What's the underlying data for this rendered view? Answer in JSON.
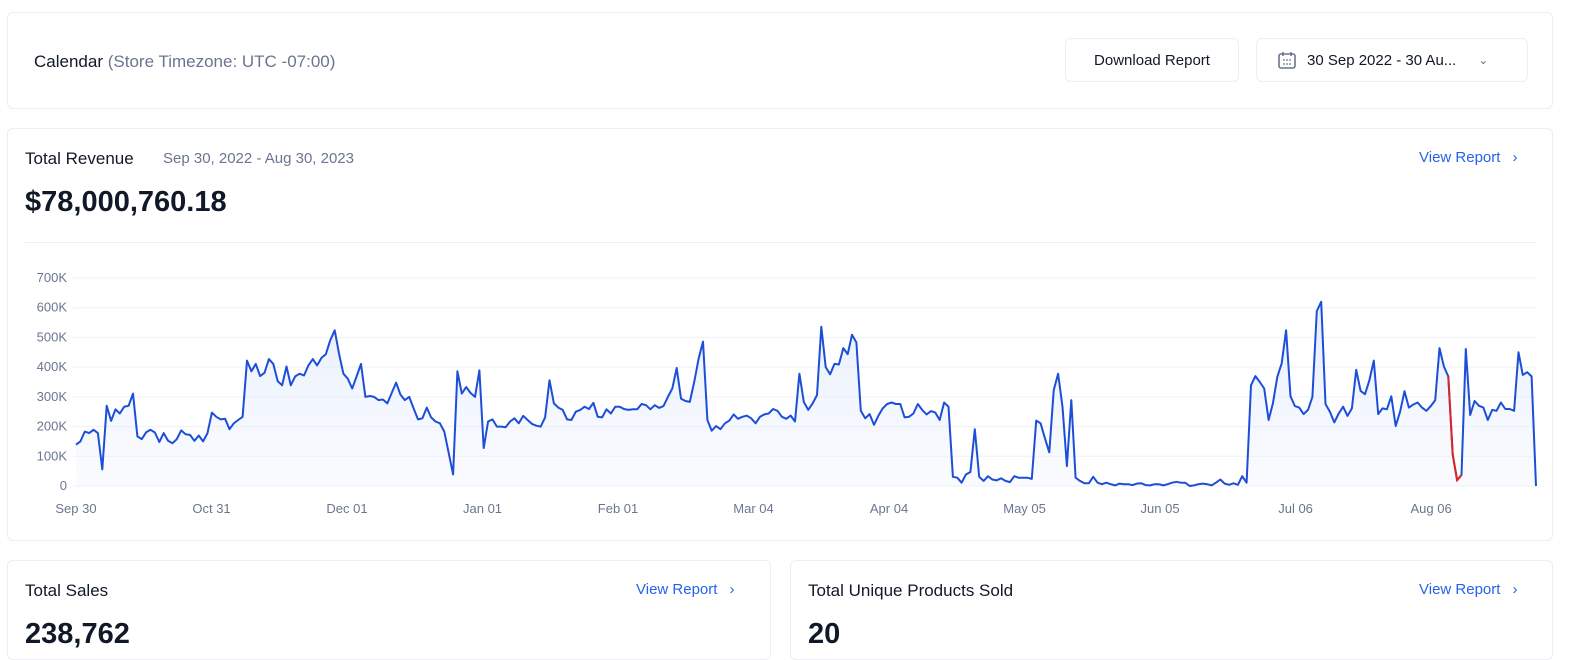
{
  "header": {
    "title": "Calendar",
    "timezone": "(Store Timezone: UTC -07:00)",
    "download_label": "Download Report",
    "date_range": "30 Sep 2022 - 30 Au...",
    "calendar_icon": "calendar-icon",
    "chevron_icon": "chevron-down-icon"
  },
  "revenue": {
    "title": "Total Revenue",
    "period": "Sep 30, 2022 - Aug 30, 2023",
    "view_report": "View Report",
    "arrow": "›",
    "total": "$78,000,760.18"
  },
  "sales": {
    "title": "Total Sales",
    "view_report": "View Report",
    "arrow": "›",
    "value": "238,762"
  },
  "unique": {
    "title": "Total Unique Products Sold",
    "view_report": "View Report",
    "arrow": "›",
    "value": "20"
  },
  "chart_data": {
    "type": "area",
    "ylim": [
      0,
      700000
    ],
    "y_ticks": [
      "0",
      "100K",
      "200K",
      "300K",
      "400K",
      "500K",
      "600K",
      "700K"
    ],
    "y_tick_values": [
      0,
      100000,
      200000,
      300000,
      400000,
      500000,
      600000,
      700000
    ],
    "x_ticks": [
      "Sep 30",
      "Oct 31",
      "Dec 01",
      "Jan 01",
      "Feb 01",
      "Mar 04",
      "Apr 04",
      "May 05",
      "Jun 05",
      "Jul 06",
      "Aug 06"
    ],
    "x_tick_days": [
      0,
      31,
      62,
      93,
      124,
      155,
      186,
      217,
      248,
      279,
      310
    ],
    "x_range": [
      "2022-09-30",
      "2023-08-30"
    ],
    "grid": true,
    "line_color": "#1d4ed8",
    "highlight_color": "#dc2626",
    "highlight_range": [
      313,
      316
    ],
    "values_k": [
      139,
      150,
      183,
      178,
      189,
      178,
      56,
      270,
      219,
      258,
      244,
      267,
      270,
      311,
      167,
      158,
      181,
      189,
      180,
      148,
      178,
      152,
      144,
      158,
      187,
      174,
      172,
      152,
      170,
      150,
      178,
      247,
      233,
      224,
      226,
      191,
      211,
      222,
      233,
      422,
      386,
      411,
      370,
      381,
      427,
      411,
      353,
      339,
      402,
      339,
      369,
      378,
      372,
      406,
      427,
      406,
      431,
      444,
      491,
      524,
      444,
      378,
      361,
      328,
      369,
      411,
      300,
      303,
      300,
      289,
      291,
      278,
      313,
      348,
      308,
      289,
      300,
      261,
      224,
      228,
      264,
      231,
      217,
      211,
      183,
      111,
      39,
      386,
      311,
      333,
      313,
      300,
      389,
      128,
      217,
      224,
      200,
      200,
      198,
      217,
      228,
      211,
      236,
      222,
      209,
      203,
      200,
      231,
      356,
      278,
      264,
      256,
      224,
      222,
      250,
      256,
      267,
      259,
      280,
      233,
      231,
      258,
      244,
      267,
      267,
      259,
      256,
      258,
      258,
      276,
      272,
      258,
      272,
      263,
      269,
      300,
      328,
      397,
      294,
      286,
      283,
      350,
      428,
      486,
      222,
      186,
      202,
      191,
      211,
      220,
      241,
      226,
      233,
      237,
      228,
      211,
      233,
      241,
      244,
      259,
      253,
      233,
      226,
      237,
      217,
      378,
      283,
      256,
      278,
      306,
      536,
      400,
      376,
      411,
      409,
      464,
      444,
      509,
      483,
      253,
      228,
      242,
      206,
      236,
      261,
      276,
      281,
      276,
      276,
      231,
      233,
      244,
      276,
      256,
      241,
      252,
      247,
      222,
      281,
      267,
      31,
      28,
      11,
      39,
      47,
      191,
      31,
      17,
      33,
      22,
      19,
      26,
      17,
      13,
      33,
      28,
      28,
      28,
      24,
      220,
      211,
      161,
      113,
      322,
      378,
      267,
      67,
      289,
      28,
      17,
      9,
      9,
      31,
      11,
      6,
      11,
      6,
      2,
      8,
      6,
      6,
      3,
      8,
      9,
      3,
      2,
      6,
      6,
      2,
      6,
      11,
      14,
      11,
      11,
      0,
      2,
      6,
      8,
      6,
      2,
      11,
      22,
      8,
      4,
      9,
      4,
      33,
      11,
      339,
      370,
      350,
      328,
      222,
      278,
      367,
      413,
      524,
      302,
      269,
      264,
      242,
      256,
      300,
      589,
      620,
      276,
      250,
      214,
      244,
      267,
      236,
      261,
      391,
      320,
      309,
      356,
      422,
      242,
      261,
      258,
      302,
      202,
      250,
      319,
      264,
      274,
      281,
      264,
      253,
      269,
      289,
      464,
      402,
      369,
      106,
      20,
      37,
      461,
      239,
      286,
      270,
      264,
      222,
      256,
      253,
      281,
      259,
      259,
      253,
      450,
      374,
      383,
      369,
      0
    ]
  }
}
